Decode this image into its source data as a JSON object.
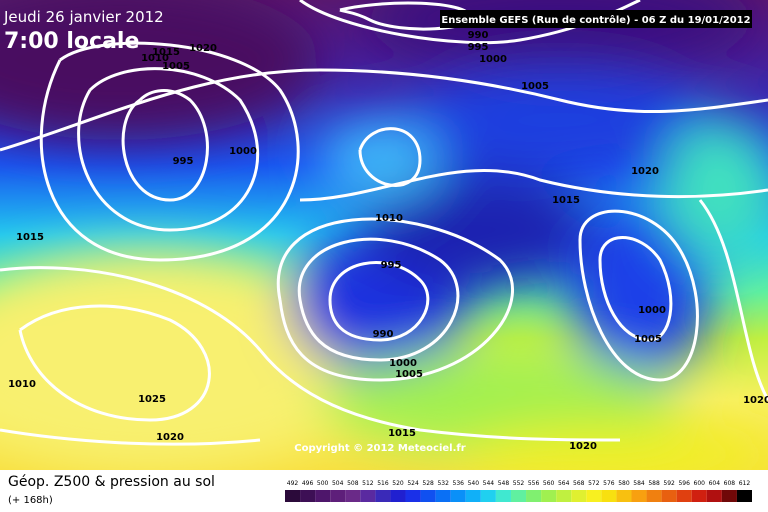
{
  "header": {
    "title": "Jeudi 26 janvier 2012",
    "time": "7:00 locale",
    "run": "Ensemble GEFS (Run de contrôle)  -  06 Z du 19/01/2012"
  },
  "isobars": [
    990,
    995,
    1000,
    1020,
    1015,
    1010,
    1005,
    1005,
    995,
    1000,
    1020,
    1015,
    1010,
    1015,
    995,
    990,
    1000,
    1005,
    1000,
    1005,
    1010,
    1025,
    1020,
    1020,
    1015,
    1020
  ],
  "copyright": "Copyright © 2012 Meteociel.fr",
  "legend": {
    "title": "Géop. Z500 & pression au sol",
    "lead": "(+ 168h)"
  },
  "colorbar": [
    492,
    496,
    500,
    504,
    508,
    512,
    516,
    520,
    524,
    528,
    532,
    536,
    540,
    544,
    548,
    552,
    556,
    560,
    564,
    568,
    572,
    576,
    580,
    584,
    588,
    592,
    596,
    600,
    604,
    608,
    612
  ]
}
